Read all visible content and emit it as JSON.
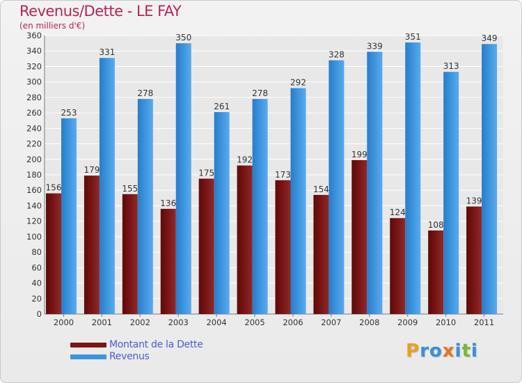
{
  "chart_data": {
    "type": "bar",
    "title": "Revenus/Dette - LE FAY",
    "subtitle": "(en milliers d'€)",
    "categories": [
      "2000",
      "2001",
      "2002",
      "2003",
      "2004",
      "2005",
      "2006",
      "2007",
      "2008",
      "2009",
      "2010",
      "2011"
    ],
    "series": [
      {
        "name": "Montant de la Dette",
        "color": "#7a1515",
        "values": [
          156,
          179,
          155,
          136,
          175,
          192,
          173,
          154,
          199,
          124,
          108,
          139
        ]
      },
      {
        "name": "Revenus",
        "color": "#3d95de",
        "values": [
          253,
          331,
          278,
          350,
          261,
          278,
          292,
          328,
          339,
          351,
          313,
          349
        ]
      }
    ],
    "ylim": [
      0,
      360
    ],
    "yticks": [
      "0",
      "20",
      "40",
      "60",
      "80",
      "100",
      "120",
      "140",
      "160",
      "180",
      "200",
      "220",
      "240",
      "260",
      "280",
      "300",
      "320",
      "340",
      "360"
    ],
    "grid": true,
    "legend_position": "bottom-left"
  },
  "logo": {
    "letters": [
      {
        "char": "P",
        "color": "#e8a21e"
      },
      {
        "char": "r",
        "color": "#3a8fd8"
      },
      {
        "char": "o",
        "color": "#3a8fd8"
      },
      {
        "char": "x",
        "color": "#e8731e"
      },
      {
        "char": "i",
        "color": "#3a8fd8"
      },
      {
        "char": "t",
        "color": "#7ab83a"
      },
      {
        "char": "i",
        "color": "#3a8fd8"
      }
    ]
  }
}
